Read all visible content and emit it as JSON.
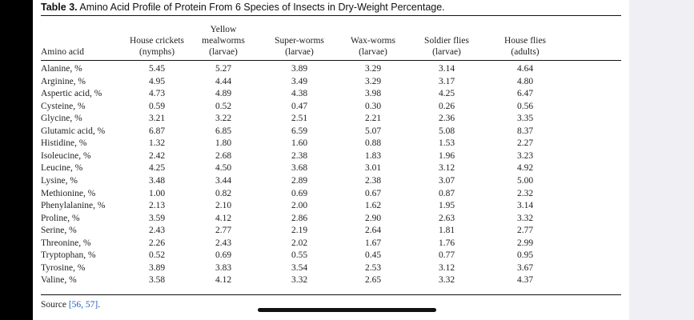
{
  "caption": {
    "label": "Table 3.",
    "text": "Amino Acid Profile of Protein From 6 Species of Insects in Dry-Weight Percentage."
  },
  "columns": [
    {
      "lines": [
        "Amino acid"
      ]
    },
    {
      "lines": [
        "House crickets",
        "(nymphs)"
      ]
    },
    {
      "lines": [
        "Yellow",
        "mealworms",
        "(larvae)"
      ]
    },
    {
      "lines": [
        "Super-worms",
        "(larvae)"
      ]
    },
    {
      "lines": [
        "Wax-worms",
        "(larvae)"
      ]
    },
    {
      "lines": [
        "Soldier flies",
        "(larvae)"
      ]
    },
    {
      "lines": [
        "House flies",
        "(adults)"
      ]
    }
  ],
  "rows": [
    {
      "name": "Alanine, %",
      "values": [
        "5.45",
        "5.27",
        "3.89",
        "3.29",
        "3.14",
        "4.64"
      ]
    },
    {
      "name": "Arginine, %",
      "values": [
        "4.95",
        "4.44",
        "3.49",
        "3.29",
        "3.17",
        "4.80"
      ]
    },
    {
      "name": "Aspertic acid, %",
      "values": [
        "4.73",
        "4.89",
        "4.38",
        "3.98",
        "4.25",
        "6.47"
      ]
    },
    {
      "name": "Cysteine, %",
      "values": [
        "0.59",
        "0.52",
        "0.47",
        "0.30",
        "0.26",
        "0.56"
      ]
    },
    {
      "name": "Glycine, %",
      "values": [
        "3.21",
        "3.22",
        "2.51",
        "2.21",
        "2.36",
        "3.35"
      ]
    },
    {
      "name": "Glutamic acid, %",
      "values": [
        "6.87",
        "6.85",
        "6.59",
        "5.07",
        "5.08",
        "8.37"
      ]
    },
    {
      "name": "Histidine, %",
      "values": [
        "1.32",
        "1.80",
        "1.60",
        "0.88",
        "1.53",
        "2.27"
      ]
    },
    {
      "name": "Isoleucine, %",
      "values": [
        "2.42",
        "2.68",
        "2.38",
        "1.83",
        "1.96",
        "3.23"
      ]
    },
    {
      "name": "Leucine, %",
      "values": [
        "4.25",
        "4.50",
        "3.68",
        "3.01",
        "3.12",
        "4.92"
      ]
    },
    {
      "name": "Lysine, %",
      "values": [
        "3.48",
        "3.44",
        "2.89",
        "2.38",
        "3.07",
        "5.00"
      ]
    },
    {
      "name": "Methionine, %",
      "values": [
        "1.00",
        "0.82",
        "0.69",
        "0.67",
        "0.87",
        "2.32"
      ]
    },
    {
      "name": "Phenylalanine, %",
      "values": [
        "2.13",
        "2.10",
        "2.00",
        "1.62",
        "1.95",
        "3.14"
      ]
    },
    {
      "name": "Proline, %",
      "values": [
        "3.59",
        "4.12",
        "2.86",
        "2.90",
        "2.63",
        "3.32"
      ]
    },
    {
      "name": "Serine, %",
      "values": [
        "2.43",
        "2.77",
        "2.19",
        "2.64",
        "1.81",
        "2.77"
      ]
    },
    {
      "name": "Threonine, %",
      "values": [
        "2.26",
        "2.43",
        "2.02",
        "1.67",
        "1.76",
        "2.99"
      ]
    },
    {
      "name": "Tryptophan, %",
      "values": [
        "0.52",
        "0.69",
        "0.55",
        "0.45",
        "0.77",
        "0.95"
      ]
    },
    {
      "name": "Tyrosine, %",
      "values": [
        "3.89",
        "3.83",
        "3.54",
        "2.53",
        "3.12",
        "3.67"
      ]
    },
    {
      "name": "Valine, %",
      "values": [
        "3.58",
        "4.12",
        "3.32",
        "2.65",
        "3.32",
        "4.37"
      ]
    }
  ],
  "source": {
    "prefix": "Source ",
    "refs": "[56, 57]",
    "suffix": "."
  },
  "colors": {
    "reference_link": "#1f5fbf",
    "side_panel": "#efeff4",
    "viewer_background": "#000000"
  }
}
